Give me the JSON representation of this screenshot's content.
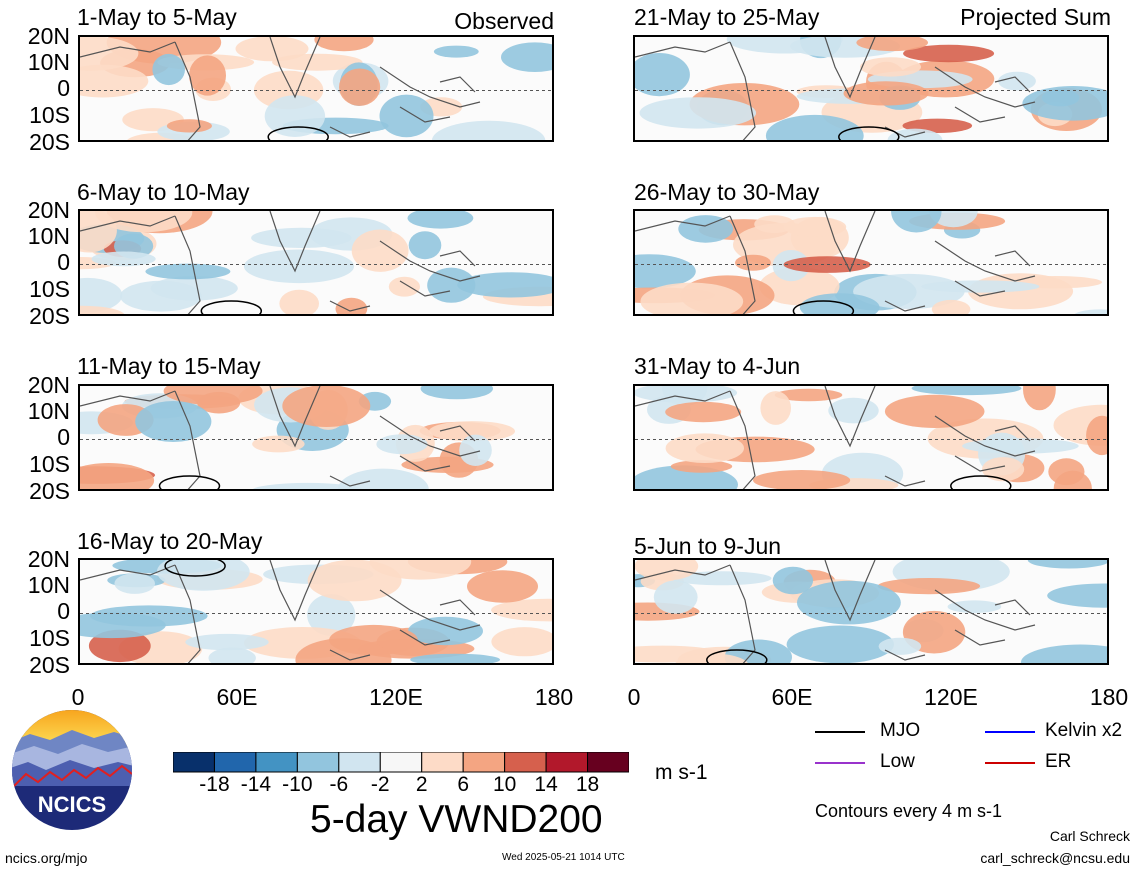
{
  "chart_data": {
    "type": "heatmap",
    "title": "5-day VWND200",
    "units": "m s-1",
    "contour_note": "Contours every 4 m s-1",
    "x_ticks": [
      "0",
      "60E",
      "120E",
      "180"
    ],
    "y_ticks": [
      "20N",
      "10N",
      "0",
      "10S",
      "20S"
    ],
    "xlim": [
      0,
      180
    ],
    "ylim": [
      -20,
      20
    ],
    "colorbar": {
      "ticks": [
        "-18",
        "-14",
        "-10",
        "-6",
        "-2",
        "2",
        "6",
        "10",
        "14",
        "18"
      ],
      "colors": [
        "#08306b",
        "#2166ac",
        "#4393c3",
        "#92c5de",
        "#d1e5f0",
        "#f7f7f7",
        "#fddbc7",
        "#f4a582",
        "#d6604d",
        "#b2182b",
        "#67001f"
      ]
    },
    "columns": [
      {
        "label": "Observed",
        "panels": [
          "1-May to 5-May",
          "6-May to 10-May",
          "11-May to 15-May",
          "16-May to 20-May"
        ]
      },
      {
        "label": "Projected Sum",
        "panels": [
          "21-May to 25-May",
          "26-May to 30-May",
          "31-May to 4-Jun",
          "5-Jun to 9-Jun"
        ]
      }
    ],
    "legend": [
      {
        "name": "MJO",
        "color": "#000000"
      },
      {
        "name": "Kelvin x2",
        "color": "#0000ff"
      },
      {
        "name": "Low",
        "color": "#9933cc"
      },
      {
        "name": "ER",
        "color": "#cc0000"
      }
    ]
  },
  "branding": {
    "logo_text": "NCICS",
    "site": "ncics.org/mjo",
    "timestamp": "Wed 2025-05-21 1014 UTC",
    "author": "Carl Schreck",
    "email": "carl_schreck@ncsu.edu"
  }
}
